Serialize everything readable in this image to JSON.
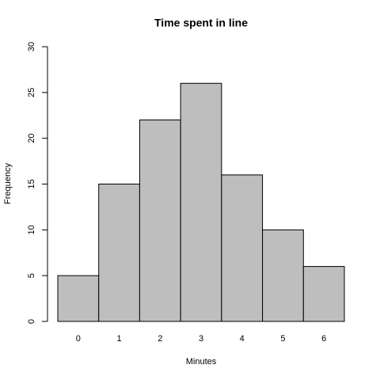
{
  "chart_data": {
    "type": "bar",
    "title": "Time spent in line",
    "x_label": "Minutes",
    "y_label": "Frequency",
    "categories": [
      "0",
      "1",
      "2",
      "3",
      "4",
      "5",
      "6"
    ],
    "values": [
      5,
      15,
      22,
      26,
      16,
      10,
      6
    ],
    "color": "#bebebe",
    "ylim": [
      0,
      30
    ],
    "yticks": [
      0,
      5,
      10,
      15,
      20,
      25,
      30
    ]
  }
}
